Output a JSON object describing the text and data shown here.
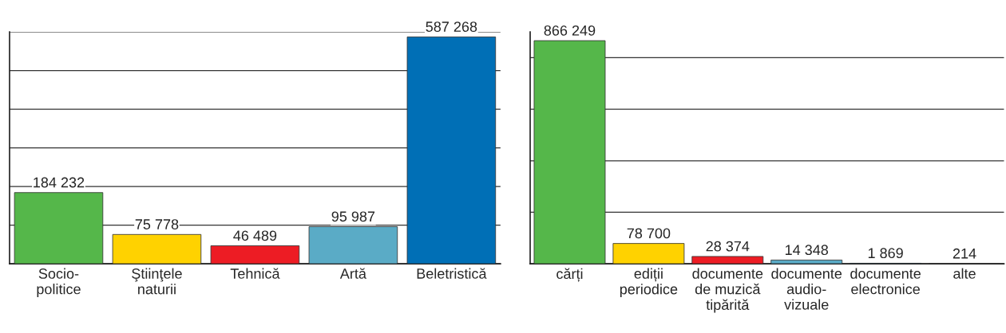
{
  "chart_data": [
    {
      "type": "bar",
      "categories": [
        "Socio-\npolitice",
        "Ştiinţele\nnaturii",
        "Tehnică",
        "Artă",
        "Beletristică"
      ],
      "values": [
        184232,
        75778,
        46489,
        95987,
        587268
      ],
      "colors": [
        "#55b74a",
        "#ffd200",
        "#ed1c24",
        "#5aabc6",
        "#006fb6"
      ],
      "value_labels": [
        "184 232",
        "75 778",
        "46 489",
        "95 987",
        "587 268"
      ],
      "ylim": [
        0,
        600000
      ],
      "yticks": [
        {
          "value": 0,
          "label": null
        },
        {
          "value": 100000,
          "label": null
        },
        {
          "value": 200000,
          "label": null
        },
        {
          "value": 300000,
          "label": null
        },
        {
          "value": 400000,
          "label": null
        },
        {
          "value": 500000,
          "label": null
        },
        {
          "value": 600000,
          "label": null
        }
      ],
      "tick_labels": "x",
      "grid": "y"
    },
    {
      "type": "bar",
      "categories": [
        "cărți",
        "ediții\nperiodice",
        "documente\nde muzică\ntipărită",
        "documente\naudio-\nvizuale",
        "documente\nelectronice",
        "alte"
      ],
      "values": [
        866249,
        78700,
        28374,
        14348,
        1869,
        214
      ],
      "colors": [
        "#55b74a",
        "#ffd200",
        "#ed1c24",
        "#5aabc6",
        "#006fb6",
        "#c1272d"
      ],
      "value_labels": [
        "866 249",
        "78 700",
        "28 374",
        "14 348",
        "1 869",
        "214"
      ],
      "ylim": [
        0,
        900000
      ],
      "yticks": [
        {
          "value": 0,
          "label": null
        },
        {
          "value": 200000,
          "label": null
        },
        {
          "value": 400000,
          "label": null
        },
        {
          "value": 600000,
          "label": null
        },
        {
          "value": 800000,
          "label": null
        }
      ],
      "tick_labels": "x",
      "grid": "y"
    }
  ]
}
